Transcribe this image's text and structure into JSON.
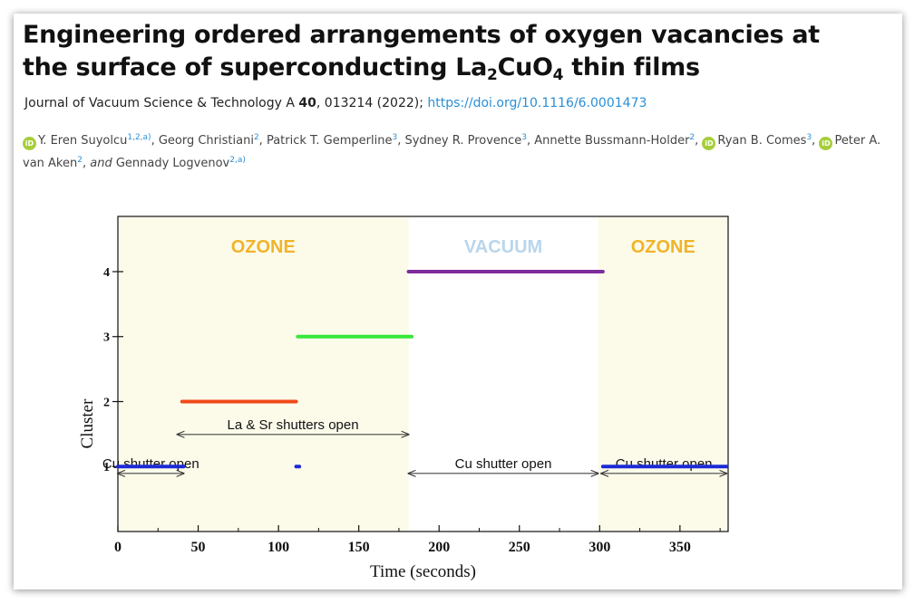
{
  "paper": {
    "title": {
      "line1": "Engineering ordered arrangements of oxygen vacancies at",
      "line2_prefix": "the surface of superconducting La",
      "sub1": "2",
      "mid": "CuO",
      "sub2": "4",
      "line2_suffix": " thin films"
    },
    "journal": {
      "name": "Journal of Vacuum Science & Technology A ",
      "volume": "40",
      "issue": ", 013214 (2022); ",
      "doi": "https://doi.org/10.1116/6.0001473"
    },
    "orcid_icon_text": "iD",
    "authors": [
      {
        "name": "Y. Eren Suyolcu",
        "sup": "1,2,a)",
        "sep": ", ",
        "orcid": true
      },
      {
        "name": "Georg Christiani",
        "sup": "2",
        "sep": ", ",
        "orcid": false
      },
      {
        "name": "Patrick T. Gemperline",
        "sup": "3",
        "sep": ", ",
        "orcid": false
      },
      {
        "name": "Sydney R. Provence",
        "sup": "3",
        "sep": ", ",
        "orcid": false
      },
      {
        "name": "Annette Bussmann-Holder",
        "sup": "2",
        "sep": ", ",
        "orcid": false
      },
      {
        "name": "Ryan B. Comes",
        "sup": "3",
        "sep": ", ",
        "orcid": true
      },
      {
        "name": "Peter A. van Aken",
        "sup": "2",
        "sep": ", ",
        "orcid": true
      },
      {
        "name": "Gennady Logvenov",
        "sup": "2,a)",
        "sep": "",
        "orcid": false,
        "prefix": "and "
      }
    ]
  },
  "chart_data": {
    "type": "line",
    "xlabel": "Time (seconds)",
    "ylabel": "Cluster",
    "xlim": [
      0,
      380
    ],
    "ylim": [
      0,
      4.85
    ],
    "xticks": [
      0,
      50,
      100,
      150,
      200,
      250,
      300,
      350
    ],
    "yticks": [
      1,
      2,
      3,
      4
    ],
    "regions": [
      {
        "label": "OZONE",
        "x0": 0,
        "x1": 181,
        "color": "#fcfbea",
        "label_color": "#f0b429"
      },
      {
        "label": "VACUUM",
        "x0": 181,
        "x1": 299,
        "color": "#ffffff",
        "label_color": "#b9d6ec"
      },
      {
        "label": "OZONE",
        "x0": 299,
        "x1": 380,
        "color": "#fcfbea",
        "label_color": "#f0b429"
      }
    ],
    "segments": [
      {
        "cluster": 1,
        "x0": 0,
        "x1": 41,
        "color": "#1c2ad6"
      },
      {
        "cluster": 1,
        "x0": 111,
        "x1": 113,
        "color": "#1c2ad6"
      },
      {
        "cluster": 1,
        "x0": 302,
        "x1": 379,
        "color": "#1c2ad6"
      },
      {
        "cluster": 2,
        "x0": 40,
        "x1": 111,
        "color": "#f04a1a"
      },
      {
        "cluster": 3,
        "x0": 112,
        "x1": 183,
        "color": "#36e83a"
      },
      {
        "cluster": 4,
        "x0": 181,
        "x1": 302,
        "color": "#7d2d9c"
      }
    ],
    "annotations": [
      {
        "text": "La & Sr shutters open",
        "x0": 37,
        "x1": 181,
        "y": 1.55,
        "label_above": true
      },
      {
        "text": "Cu shutter open",
        "x0": 0,
        "x1": 41,
        "y": 0.95,
        "label_above": true
      },
      {
        "text": "Cu shutter open",
        "x0": 181,
        "x1": 299,
        "y": 0.95,
        "label_above": true
      },
      {
        "text": "Cu shutter open",
        "x0": 301,
        "x1": 379,
        "y": 0.95,
        "label_above": true
      }
    ]
  }
}
